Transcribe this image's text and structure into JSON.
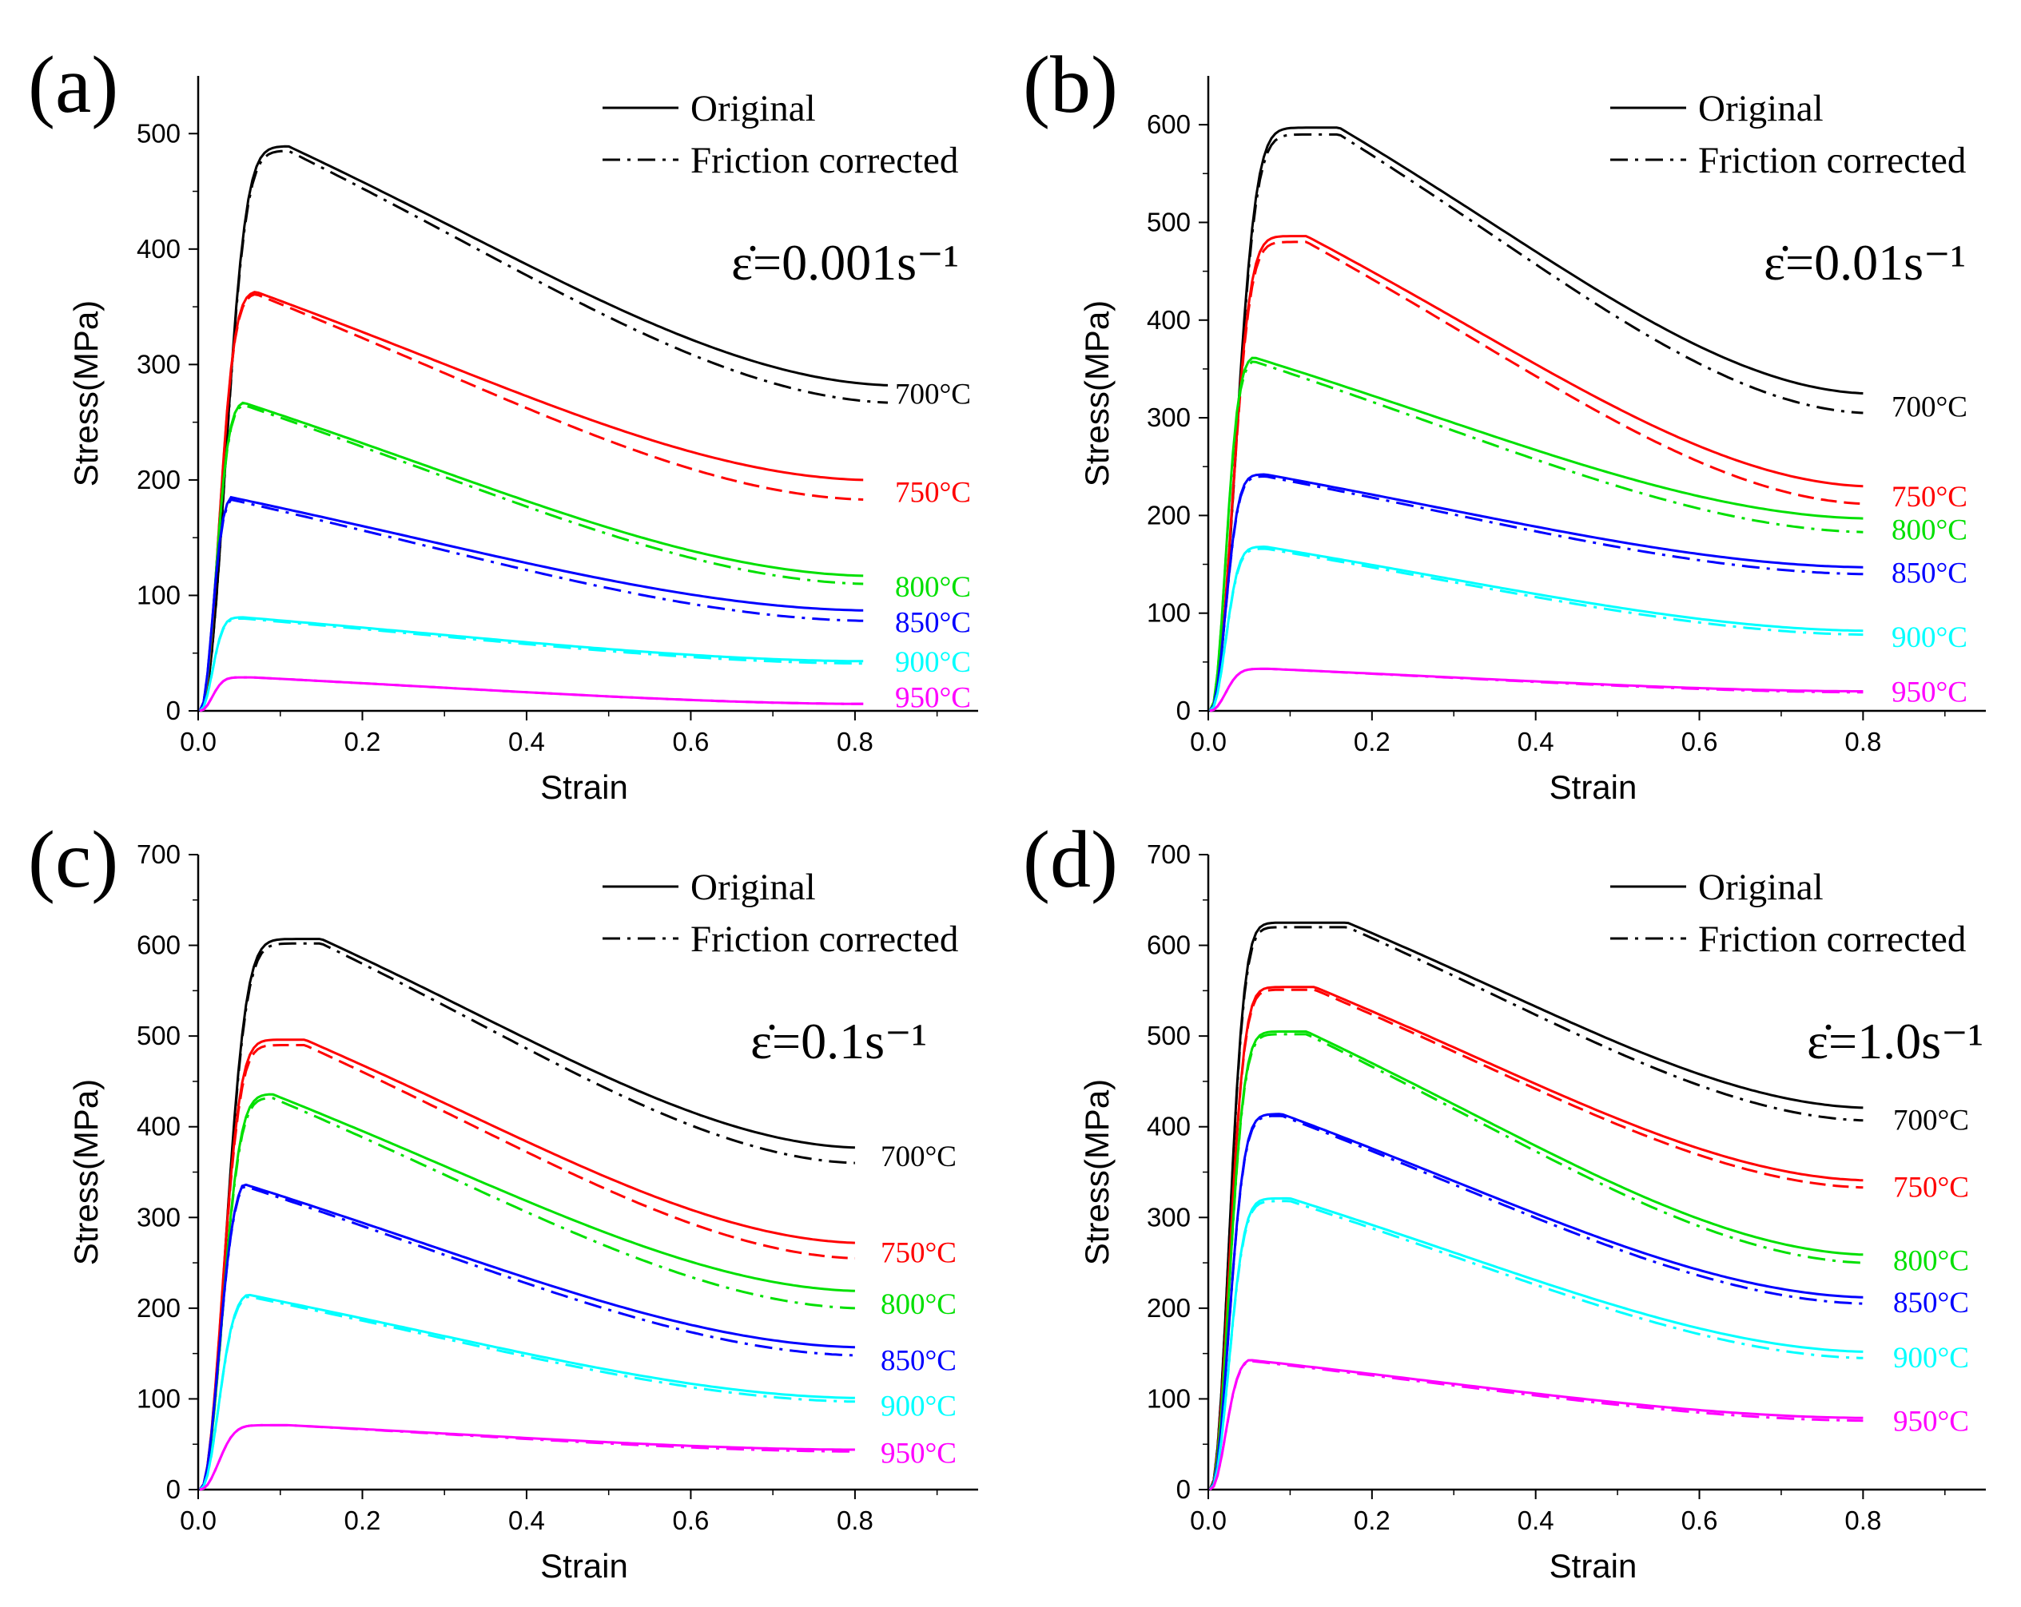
{
  "figure": {
    "colors": {
      "700": "#000000",
      "750": "#ff0000",
      "800": "#00e000",
      "850": "#0000ff",
      "900": "#00ffff",
      "950": "#ff00ff"
    },
    "legend": {
      "original": "Original",
      "corrected": "Friction corrected"
    }
  },
  "chart_data": [
    {
      "panel": "(a)",
      "type": "line",
      "rate_label": "ε̇=0.001s⁻¹",
      "xlabel": "Strain",
      "ylabel": "Stress(MPa)",
      "xlim": [
        0,
        0.95
      ],
      "ylim": [
        0,
        550
      ],
      "xticks": [
        0.0,
        0.2,
        0.4,
        0.6,
        0.8
      ],
      "xtick_labels": [
        "0.0",
        "0.2",
        "0.4",
        "0.6",
        "0.8"
      ],
      "yticks": [
        0,
        100,
        200,
        300,
        400,
        500
      ],
      "ytick_labels": [
        "0",
        "100",
        "200",
        "300",
        "400",
        "500"
      ],
      "legend": [
        "Original",
        "Friction corrected"
      ],
      "series": [
        {
          "name": "700°C",
          "color_key": "700",
          "ystart": 0,
          "xr": 0.04,
          "peak": [
            0.11,
            489
          ],
          "end": [
            0.84,
            282
          ],
          "corr_end": [
            0.84,
            267
          ],
          "corr_peak": 485,
          "label_y": 275
        },
        {
          "name": "750°C",
          "color_key": "750",
          "ystart": 0,
          "xr": 0.03,
          "peak": [
            0.07,
            363
          ],
          "end": [
            0.81,
            200
          ],
          "corr_end": [
            0.81,
            183
          ],
          "corr_peak": 361,
          "label_y": 190
        },
        {
          "name": "800°C",
          "color_key": "800",
          "ystart": 0,
          "xr": 0.025,
          "peak": [
            0.055,
            267
          ],
          "end": [
            0.81,
            117
          ],
          "corr_end": [
            0.81,
            110
          ],
          "corr_peak": 265,
          "label_y": 108
        },
        {
          "name": "850°C",
          "color_key": "850",
          "ystart": 0,
          "xr": 0.02,
          "peak": [
            0.04,
            185
          ],
          "end": [
            0.81,
            87
          ],
          "corr_end": [
            0.81,
            78
          ],
          "corr_peak": 183,
          "label_y": 77
        },
        {
          "name": "900°C",
          "color_key": "900",
          "ystart": 0,
          "xr": 0.02,
          "peak": [
            0.055,
            81
          ],
          "end": [
            0.81,
            43
          ],
          "corr_end": [
            0.81,
            41
          ],
          "corr_peak": 80,
          "label_y": 43
        },
        {
          "name": "950°C",
          "color_key": "950",
          "ystart": 0,
          "xr": 0.02,
          "peak": [
            0.065,
            29
          ],
          "end": [
            0.81,
            6
          ],
          "corr_end": [
            0.81,
            6
          ],
          "corr_peak": 29,
          "label_y": 12
        }
      ]
    },
    {
      "panel": "(b)",
      "type": "line",
      "rate_label": "ε̇=0.01s⁻¹",
      "xlabel": "Strain",
      "ylabel": "Stress(MPa)",
      "xlim": [
        0,
        0.95
      ],
      "ylim": [
        0,
        650
      ],
      "xticks": [
        0.0,
        0.2,
        0.4,
        0.6,
        0.8
      ],
      "xtick_labels": [
        "0.0",
        "0.2",
        "0.4",
        "0.6",
        "0.8"
      ],
      "yticks": [
        0,
        100,
        200,
        300,
        400,
        500,
        600
      ],
      "ytick_labels": [
        "0",
        "100",
        "200",
        "300",
        "400",
        "500",
        "600"
      ],
      "legend": [
        "Original",
        "Friction corrected"
      ],
      "series": [
        {
          "name": "700°C",
          "color_key": "700",
          "ystart": 0,
          "xr": 0.04,
          "peak": [
            0.16,
            597
          ],
          "end": [
            0.8,
            325
          ],
          "corr_end": [
            0.8,
            305
          ],
          "corr_peak": 590,
          "label_y": 312
        },
        {
          "name": "750°C",
          "color_key": "750",
          "ystart": 0,
          "xr": 0.035,
          "peak": [
            0.12,
            486
          ],
          "end": [
            0.8,
            230
          ],
          "corr_end": [
            0.8,
            212
          ],
          "corr_peak": 480,
          "label_y": 220
        },
        {
          "name": "800°C",
          "color_key": "800",
          "ystart": 0,
          "xr": 0.025,
          "peak": [
            0.055,
            362
          ],
          "end": [
            0.8,
            197
          ],
          "corr_end": [
            0.8,
            183
          ],
          "corr_peak": 358,
          "label_y": 186
        },
        {
          "name": "850°C",
          "color_key": "850",
          "ystart": 0,
          "xr": 0.025,
          "peak": [
            0.07,
            242
          ],
          "end": [
            0.8,
            147
          ],
          "corr_end": [
            0.8,
            140
          ],
          "corr_peak": 240,
          "label_y": 142
        },
        {
          "name": "900°C",
          "color_key": "900",
          "ystart": 0,
          "xr": 0.025,
          "peak": [
            0.07,
            168
          ],
          "end": [
            0.8,
            82
          ],
          "corr_end": [
            0.8,
            78
          ],
          "corr_peak": 166,
          "label_y": 76
        },
        {
          "name": "950°C",
          "color_key": "950",
          "ystart": 0,
          "xr": 0.025,
          "peak": [
            0.075,
            43
          ],
          "end": [
            0.8,
            20
          ],
          "corr_end": [
            0.8,
            19
          ],
          "corr_peak": 43,
          "label_y": 20
        }
      ]
    },
    {
      "panel": "(c)",
      "type": "line",
      "rate_label": "ε̇=0.1s⁻¹",
      "xlabel": "Strain",
      "ylabel": "Stress(MPa)",
      "xlim": [
        0,
        0.95
      ],
      "ylim": [
        0,
        700
      ],
      "xticks": [
        0.0,
        0.2,
        0.4,
        0.6,
        0.8
      ],
      "xtick_labels": [
        "0.0",
        "0.2",
        "0.4",
        "0.6",
        "0.8"
      ],
      "yticks": [
        0,
        100,
        200,
        300,
        400,
        500,
        600,
        700
      ],
      "ytick_labels": [
        "0",
        "100",
        "200",
        "300",
        "400",
        "500",
        "600",
        "700"
      ],
      "legend": [
        "Original",
        "Friction corrected"
      ],
      "series": [
        {
          "name": "700°C",
          "color_key": "700",
          "ystart": 0,
          "xr": 0.04,
          "peak": [
            0.15,
            607
          ],
          "end": [
            0.8,
            377
          ],
          "corr_end": [
            0.8,
            360
          ],
          "corr_peak": 602,
          "label_y": 368
        },
        {
          "name": "750°C",
          "color_key": "750",
          "ystart": 0,
          "xr": 0.035,
          "peak": [
            0.13,
            496
          ],
          "end": [
            0.8,
            272
          ],
          "corr_end": [
            0.8,
            255
          ],
          "corr_peak": 490,
          "label_y": 262
        },
        {
          "name": "800°C",
          "color_key": "800",
          "ystart": 0,
          "xr": 0.035,
          "peak": [
            0.09,
            436
          ],
          "end": [
            0.8,
            219
          ],
          "corr_end": [
            0.8,
            200
          ],
          "corr_peak": 432,
          "label_y": 205
        },
        {
          "name": "850°C",
          "color_key": "850",
          "ystart": 0,
          "xr": 0.03,
          "peak": [
            0.055,
            337
          ],
          "end": [
            0.8,
            157
          ],
          "corr_end": [
            0.8,
            148
          ],
          "corr_peak": 335,
          "label_y": 143
        },
        {
          "name": "900°C",
          "color_key": "900",
          "ystart": 0,
          "xr": 0.03,
          "peak": [
            0.06,
            215
          ],
          "end": [
            0.8,
            101
          ],
          "corr_end": [
            0.8,
            97
          ],
          "corr_peak": 213,
          "label_y": 93
        },
        {
          "name": "950°C",
          "color_key": "950",
          "ystart": 0,
          "xr": 0.03,
          "peak": [
            0.11,
            71
          ],
          "end": [
            0.8,
            44
          ],
          "corr_end": [
            0.8,
            42
          ],
          "corr_peak": 71,
          "label_y": 41
        }
      ]
    },
    {
      "panel": "(d)",
      "type": "line",
      "rate_label": "ε̇=1.0s⁻¹",
      "xlabel": "Strain",
      "ylabel": "Stress(MPa)",
      "xlim": [
        0,
        0.95
      ],
      "ylim": [
        0,
        700
      ],
      "xticks": [
        0.0,
        0.2,
        0.4,
        0.6,
        0.8
      ],
      "xtick_labels": [
        "0.0",
        "0.2",
        "0.4",
        "0.6",
        "0.8"
      ],
      "yticks": [
        0,
        100,
        200,
        300,
        400,
        500,
        600,
        700
      ],
      "ytick_labels": [
        "0",
        "100",
        "200",
        "300",
        "400",
        "500",
        "600",
        "700"
      ],
      "legend": [
        "Original",
        "Friction corrected"
      ],
      "series": [
        {
          "name": "700°C",
          "color_key": "700",
          "ystart": 0,
          "xr": 0.03,
          "peak": [
            0.17,
            625
          ],
          "end": [
            0.8,
            421
          ],
          "corr_end": [
            0.8,
            407
          ],
          "corr_peak": 620,
          "label_y": 408
        },
        {
          "name": "750°C",
          "color_key": "750",
          "ystart": 0,
          "xr": 0.03,
          "peak": [
            0.13,
            554
          ],
          "end": [
            0.8,
            341
          ],
          "corr_end": [
            0.8,
            333
          ],
          "corr_peak": 551,
          "label_y": 334
        },
        {
          "name": "800°C",
          "color_key": "800",
          "ystart": 0,
          "xr": 0.03,
          "peak": [
            0.12,
            505
          ],
          "end": [
            0.8,
            259
          ],
          "corr_end": [
            0.8,
            250
          ],
          "corr_peak": 502,
          "label_y": 253
        },
        {
          "name": "850°C",
          "color_key": "850",
          "ystart": 0,
          "xr": 0.03,
          "peak": [
            0.09,
            414
          ],
          "end": [
            0.8,
            212
          ],
          "corr_end": [
            0.8,
            205
          ],
          "corr_peak": 412,
          "label_y": 207
        },
        {
          "name": "900°C",
          "color_key": "900",
          "ystart": 0,
          "xr": 0.03,
          "peak": [
            0.1,
            321
          ],
          "end": [
            0.8,
            152
          ],
          "corr_end": [
            0.8,
            145
          ],
          "corr_peak": 318,
          "label_y": 146
        },
        {
          "name": "950°C",
          "color_key": "950",
          "ystart": 0,
          "xr": 0.025,
          "peak": [
            0.05,
            143
          ],
          "end": [
            0.8,
            79
          ],
          "corr_end": [
            0.8,
            76
          ],
          "corr_peak": 142,
          "label_y": 76
        }
      ]
    }
  ]
}
